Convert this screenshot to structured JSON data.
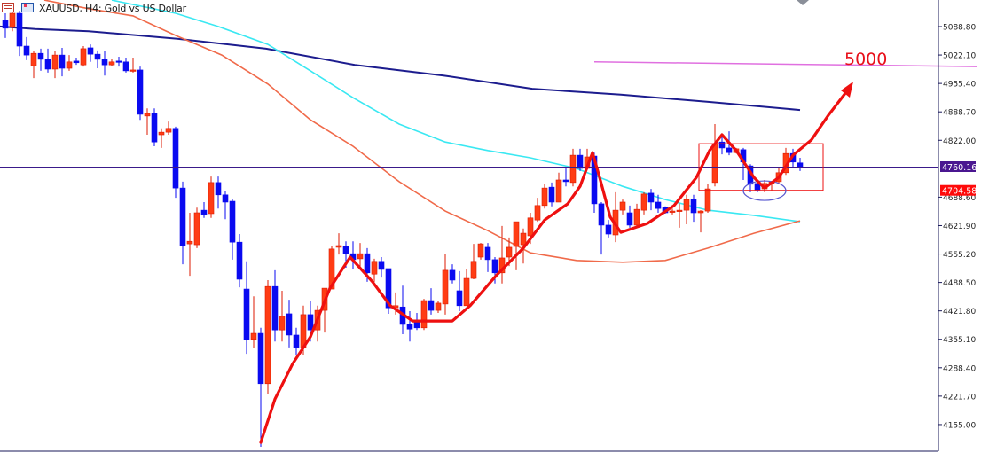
{
  "header": {
    "title": "XAUUSD, H4:  Gold vs US Dollar",
    "icons": [
      "properties-icon",
      "template-icon"
    ]
  },
  "colors": {
    "bull": "#ff3c14",
    "bear": "#0a0af0",
    "ma_slow": "#1c1c8e",
    "ma_mid": "#3ae8f2",
    "ma_fast": "#f06a4a",
    "price_line": "#3a1a8a",
    "support_line": "#e01010",
    "target_line": "#e070e0",
    "annotation": "#ee1010",
    "ellipse": "#5a5ad0",
    "axis": "#1a1a5a"
  },
  "chart_data": {
    "type": "candlestick",
    "symbol": "XAUUSD",
    "timeframe": "H4",
    "ylim": [
      4120,
      5140
    ],
    "grid": false,
    "y_ticks": [
      "5088.80",
      "5022.10",
      "4955.40",
      "4888.70",
      "4822.00",
      "4688.60",
      "4621.90",
      "4555.20",
      "4488.50",
      "4421.80",
      "4355.10",
      "4288.40",
      "4221.70",
      "4155.00"
    ],
    "candles_ohlc": [
      [
        5103,
        5120,
        5062,
        5085
      ],
      [
        5087,
        5130,
        5078,
        5120
      ],
      [
        5120,
        5126,
        5020,
        5043
      ],
      [
        5043,
        5064,
        5010,
        5022
      ],
      [
        4997,
        5031,
        4968,
        5026
      ],
      [
        5026,
        5037,
        4985,
        5012
      ],
      [
        5012,
        5037,
        4981,
        4989
      ],
      [
        4989,
        5031,
        4968,
        5022
      ],
      [
        5022,
        5039,
        4972,
        4991
      ],
      [
        4991,
        5022,
        4985,
        5006
      ],
      [
        5008,
        5016,
        4999,
        5004
      ],
      [
        4999,
        5043,
        4995,
        5037
      ],
      [
        5039,
        5047,
        5006,
        5024
      ],
      [
        5024,
        5033,
        4991,
        5012
      ],
      [
        5012,
        5031,
        4974,
        4999
      ],
      [
        4999,
        5012,
        4997,
        5006
      ],
      [
        5008,
        5018,
        4995,
        5006
      ],
      [
        5006,
        5016,
        4981,
        4985
      ],
      [
        4985,
        5016,
        4981,
        4987
      ],
      [
        4987,
        4995,
        4870,
        4883
      ],
      [
        4879,
        4897,
        4835,
        4885
      ],
      [
        4885,
        4897,
        4808,
        4818
      ],
      [
        4835,
        4850,
        4804,
        4841
      ],
      [
        4841,
        4866,
        4835,
        4850
      ],
      [
        4850,
        4854,
        4687,
        4710
      ],
      [
        4710,
        4725,
        4531,
        4575
      ],
      [
        4579,
        4652,
        4504,
        4585
      ],
      [
        4577,
        4664,
        4569,
        4652
      ],
      [
        4658,
        4677,
        4640,
        4648
      ],
      [
        4650,
        4737,
        4640,
        4723
      ],
      [
        4723,
        4737,
        4662,
        4694
      ],
      [
        4694,
        4702,
        4637,
        4677
      ],
      [
        4679,
        4685,
        4542,
        4583
      ],
      [
        4583,
        4602,
        4477,
        4496
      ],
      [
        4473,
        4538,
        4321,
        4355
      ],
      [
        4355,
        4456,
        4334,
        4369
      ],
      [
        4369,
        4382,
        4103,
        4251
      ],
      [
        4251,
        4494,
        4226,
        4479
      ],
      [
        4479,
        4517,
        4350,
        4377
      ],
      [
        4377,
        4469,
        4350,
        4409
      ],
      [
        4415,
        4448,
        4336,
        4365
      ],
      [
        4365,
        4382,
        4319,
        4336
      ],
      [
        4336,
        4434,
        4319,
        4413
      ],
      [
        4413,
        4444,
        4350,
        4377
      ],
      [
        4377,
        4434,
        4350,
        4423
      ],
      [
        4423,
        4475,
        4371,
        4475
      ],
      [
        4473,
        4573,
        4504,
        4567
      ],
      [
        4571,
        4604,
        4554,
        4575
      ],
      [
        4573,
        4585,
        4523,
        4556
      ],
      [
        4556,
        4585,
        4521,
        4542
      ],
      [
        4544,
        4581,
        4523,
        4556
      ],
      [
        4556,
        4569,
        4490,
        4511
      ],
      [
        4508,
        4544,
        4490,
        4538
      ],
      [
        4538,
        4548,
        4500,
        4519
      ],
      [
        4521,
        4521,
        4415,
        4429
      ],
      [
        4429,
        4465,
        4413,
        4434
      ],
      [
        4431,
        4481,
        4367,
        4390
      ],
      [
        4390,
        4421,
        4350,
        4379
      ],
      [
        4400,
        4417,
        4377,
        4382
      ],
      [
        4382,
        4450,
        4377,
        4446
      ],
      [
        4446,
        4475,
        4413,
        4423
      ],
      [
        4423,
        4444,
        4417,
        4440
      ],
      [
        4438,
        4556,
        4413,
        4517
      ],
      [
        4517,
        4531,
        4486,
        4494
      ],
      [
        4469,
        4515,
        4421,
        4434
      ],
      [
        4434,
        4519,
        4434,
        4498
      ],
      [
        4498,
        4579,
        4496,
        4538
      ],
      [
        4548,
        4581,
        4542,
        4579
      ],
      [
        4571,
        4581,
        4513,
        4542
      ],
      [
        4542,
        4548,
        4486,
        4511
      ],
      [
        4511,
        4621,
        4486,
        4546
      ],
      [
        4548,
        4594,
        4527,
        4571
      ],
      [
        4573,
        4631,
        4517,
        4631
      ],
      [
        4577,
        4615,
        4533,
        4604
      ],
      [
        4598,
        4652,
        4579,
        4640
      ],
      [
        4635,
        4687,
        4631,
        4669
      ],
      [
        4669,
        4719,
        4662,
        4710
      ],
      [
        4712,
        4723,
        4667,
        4677
      ],
      [
        4677,
        4746,
        4677,
        4729
      ],
      [
        4729,
        4760,
        4714,
        4725
      ],
      [
        4723,
        4802,
        4714,
        4787
      ],
      [
        4787,
        4802,
        4750,
        4756
      ],
      [
        4756,
        4802,
        4756,
        4783
      ],
      [
        4785,
        4793,
        4652,
        4673
      ],
      [
        4673,
        4677,
        4554,
        4623
      ],
      [
        4623,
        4635,
        4594,
        4602
      ],
      [
        4600,
        4700,
        4583,
        4658
      ],
      [
        4658,
        4683,
        4648,
        4677
      ],
      [
        4652,
        4669,
        4617,
        4623
      ],
      [
        4623,
        4673,
        4617,
        4660
      ],
      [
        4658,
        4700,
        4648,
        4696
      ],
      [
        4698,
        4708,
        4658,
        4677
      ],
      [
        4677,
        4694,
        4652,
        4662
      ],
      [
        4664,
        4667,
        4650,
        4652
      ],
      [
        4654,
        4662,
        4648,
        4656
      ],
      [
        4656,
        4673,
        4617,
        4658
      ],
      [
        4658,
        4694,
        4625,
        4683
      ],
      [
        4683,
        4694,
        4631,
        4652
      ],
      [
        4652,
        4658,
        4606,
        4656
      ],
      [
        4656,
        4719,
        4652,
        4708
      ],
      [
        4723,
        4860,
        4714,
        4814
      ],
      [
        4818,
        4833,
        4789,
        4804
      ],
      [
        4804,
        4843,
        4787,
        4793
      ],
      [
        4793,
        4804,
        4791,
        4802
      ],
      [
        4800,
        4804,
        4729,
        4771
      ],
      [
        4762,
        4766,
        4700,
        4719
      ],
      [
        4721,
        4729,
        4700,
        4706
      ],
      [
        4708,
        4729,
        4700,
        4721
      ],
      [
        4721,
        4727,
        4704,
        4725
      ],
      [
        4725,
        4756,
        4721,
        4746
      ],
      [
        4746,
        4804,
        4741,
        4791
      ],
      [
        4791,
        4802,
        4760,
        4771
      ],
      [
        4769,
        4781,
        4750,
        4760
      ]
    ],
    "moving_averages": [
      {
        "color_key": "ma_slow",
        "points": [
          [
            -0.75,
            5089
          ],
          [
            4.25,
            5083
          ],
          [
            11.75,
            5078
          ],
          [
            24.25,
            5060
          ],
          [
            36.75,
            5037
          ],
          [
            49.25,
            4999
          ],
          [
            61.75,
            4974
          ],
          [
            74.25,
            4943
          ],
          [
            86.75,
            4929
          ],
          [
            99.25,
            4912
          ],
          [
            112,
            4893
          ]
        ]
      },
      {
        "color_key": "ma_mid",
        "points": [
          [
            15,
            5151
          ],
          [
            24,
            5120
          ],
          [
            30,
            5089
          ],
          [
            37,
            5047
          ],
          [
            43,
            4985
          ],
          [
            49,
            4922
          ],
          [
            55.5,
            4860
          ],
          [
            62,
            4818
          ],
          [
            68,
            4798
          ],
          [
            74,
            4781
          ],
          [
            80.5,
            4756
          ],
          [
            87,
            4714
          ],
          [
            93,
            4683
          ],
          [
            99,
            4658
          ],
          [
            105.5,
            4646
          ],
          [
            112,
            4631
          ]
        ]
      },
      {
        "color_key": "ma_fast",
        "points": [
          [
            5.5,
            5151
          ],
          [
            12,
            5130
          ],
          [
            18,
            5114
          ],
          [
            24,
            5068
          ],
          [
            30.5,
            5022
          ],
          [
            37,
            4954
          ],
          [
            43,
            4870
          ],
          [
            49,
            4808
          ],
          [
            55.5,
            4725
          ],
          [
            62,
            4656
          ],
          [
            68,
            4610
          ],
          [
            74,
            4558
          ],
          [
            80.5,
            4540
          ],
          [
            87,
            4536
          ],
          [
            93,
            4540
          ],
          [
            99,
            4569
          ],
          [
            105.5,
            4604
          ],
          [
            112,
            4633
          ]
        ]
      }
    ],
    "horizontal_lines": [
      {
        "price": 4760.16,
        "label": "4760.16",
        "color_key": "price_line"
      },
      {
        "price": 4704.58,
        "label": "4704.58",
        "color_key": "support_line"
      }
    ],
    "annotations": {
      "target_label": "5000",
      "target_line": [
        [
          83,
          5006
        ],
        [
          137,
          4995
        ]
      ],
      "path": [
        [
          36,
          4113
        ],
        [
          38,
          4215
        ],
        [
          40.5,
          4298
        ],
        [
          43,
          4361
        ],
        [
          45.75,
          4475
        ],
        [
          48.6,
          4548
        ],
        [
          51.75,
          4490
        ],
        [
          54.25,
          4434
        ],
        [
          57.4,
          4398
        ],
        [
          63,
          4398
        ],
        [
          65.5,
          4434
        ],
        [
          69.25,
          4506
        ],
        [
          73,
          4569
        ],
        [
          76,
          4635
        ],
        [
          79.25,
          4673
        ],
        [
          81,
          4714
        ],
        [
          82.75,
          4793
        ],
        [
          83.75,
          4735
        ],
        [
          85.25,
          4642
        ],
        [
          86.75,
          4606
        ],
        [
          90.5,
          4627
        ],
        [
          94.25,
          4669
        ],
        [
          97.4,
          4735
        ],
        [
          99.25,
          4798
        ],
        [
          101,
          4835
        ],
        [
          103,
          4798
        ],
        [
          105.5,
          4735
        ],
        [
          107,
          4710
        ],
        [
          109,
          4735
        ],
        [
          111,
          4787
        ],
        [
          113.6,
          4823
        ],
        [
          116,
          4881
        ],
        [
          118.5,
          4935
        ]
      ],
      "box": {
        "from_index": 98,
        "to_index": 115,
        "high": 4814,
        "low": 4704.58
      },
      "ellipse": {
        "index": 107,
        "price": 4708
      }
    }
  }
}
